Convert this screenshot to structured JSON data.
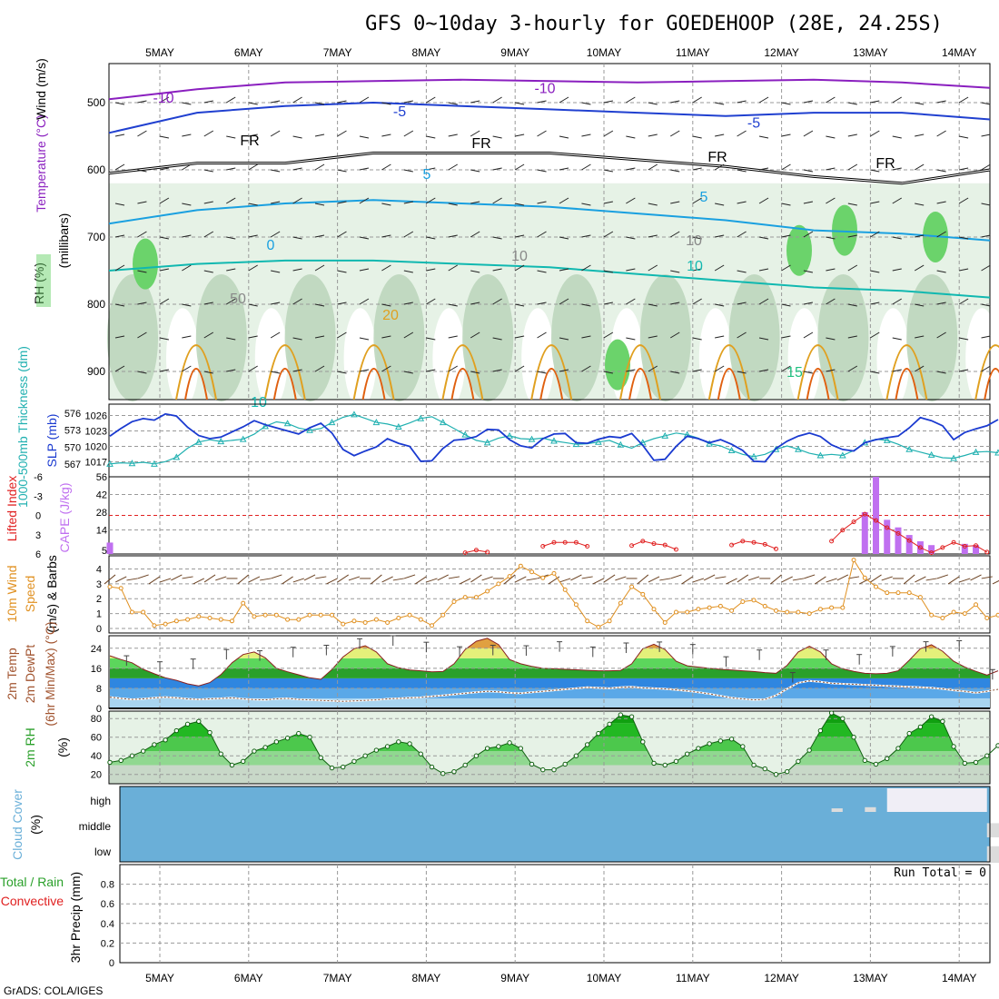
{
  "title": "GFS 0~10day 3-hourly for GOEDEHOOP (28E, 24.25S)",
  "credit": "GrADS: COLA/IGES",
  "colors": {
    "rh_fill_light": "#e6f2e6",
    "rh_fill_mid": "#bcd6bc",
    "rh_fill_dark": "#6bd36b",
    "temp_m10": "#8a1fbf",
    "temp_m5": "#2040d0",
    "temp_5": "#1aa0e0",
    "temp_10": "#10b8b0",
    "temp_15": "#20c080",
    "temp_20": "#e0a020",
    "temp_25": "#e06010",
    "thickness": "#20b0b0",
    "slp": "#1a3ad0",
    "cape": "#c070f0",
    "lifted_index": "#e02020",
    "wind_speed": "#e09020",
    "cloud_bg": "#6aafd8",
    "cloud_fill": "#dcdcdc"
  },
  "chart_data": [
    {
      "panel": "sounding",
      "type": "contour",
      "x_labels": [
        "5MAY",
        "6MAY",
        "7MAY",
        "8MAY",
        "9MAY",
        "10MAY",
        "11MAY",
        "12MAY",
        "13MAY",
        "14MAY"
      ],
      "ylabel": "Wind (m/s)",
      "ylabel_parts": [
        "RH (%)",
        "Temperature (°C)",
        "Wind (m/s)"
      ],
      "ylabel2": "(millibars)",
      "y_ticks": [
        500,
        600,
        700,
        800,
        900
      ],
      "ylim": [
        1000,
        450
      ],
      "contour_labels": [
        "-10",
        "-10",
        "-5",
        "-5",
        "FR",
        "FR",
        "FR",
        "FR",
        "5",
        "5",
        "10",
        "10",
        "20",
        "15",
        "0",
        "10",
        "10",
        "50"
      ],
      "freezing_level_hpa": [
        605,
        590,
        590,
        575,
        575,
        575,
        585,
        595,
        610,
        620,
        600
      ],
      "isotherms": [
        {
          "label": "-10",
          "hpa": [
            495,
            480,
            470,
            468,
            466,
            468,
            470,
            468,
            466,
            470,
            478
          ]
        },
        {
          "label": "-5",
          "hpa": [
            545,
            515,
            505,
            500,
            505,
            510,
            515,
            520,
            515,
            515,
            525
          ]
        },
        {
          "label": "5",
          "hpa": [
            680,
            660,
            650,
            645,
            650,
            655,
            665,
            675,
            690,
            695,
            705
          ]
        },
        {
          "label": "10",
          "hpa": [
            750,
            740,
            735,
            735,
            740,
            745,
            755,
            765,
            775,
            780,
            790
          ]
        }
      ]
    },
    {
      "panel": "thickness_slp",
      "type": "line",
      "ylabel": "1000-500mb Thickness (dm)",
      "ylabel_right": "SLP (mb)",
      "y_ticks_left": [
        567,
        570,
        573,
        576
      ],
      "y_ticks_right": [
        1017,
        1020,
        1023,
        1026
      ],
      "series": [
        {
          "name": "1000-500mb Thickness (dm)",
          "ylim": [
            566,
            577
          ],
          "values": [
            567.0,
            567.2,
            567.1,
            567.3,
            567.0,
            567.4,
            568.2,
            569.8,
            570.9,
            571.3,
            571.0,
            571.2,
            571.4,
            572.3,
            573.7,
            574.5,
            574.2,
            573.4,
            573.0,
            573.3,
            574.4,
            575.3,
            575.8,
            575.1,
            574.4,
            574.1,
            573.6,
            574.3,
            575.1,
            575.4,
            574.4,
            573.3,
            572.2,
            571.2,
            570.8,
            571.6,
            572.0,
            571.5,
            571.4,
            571.6,
            571.1,
            570.8,
            570.5,
            570.6,
            570.9,
            571.2,
            570.4,
            569.8,
            570.8,
            571.5,
            572.0,
            572.5,
            572.2,
            571.6,
            570.6,
            570.2,
            569.4,
            568.7,
            568.3,
            568.7,
            569.6,
            570.2,
            569.6,
            568.9,
            568.5,
            568.7,
            568.5,
            569.4,
            570.8,
            571.4,
            571.2,
            570.5,
            569.6,
            569.1,
            568.6,
            568.1,
            568.0,
            568.5,
            569.1,
            569.2,
            569.0
          ]
        },
        {
          "name": "SLP (mb)",
          "ylim": [
            1015.5,
            1027.5
          ],
          "values": [
            1022.0,
            1023.5,
            1024.8,
            1025.4,
            1025.1,
            1026.3,
            1025.9,
            1023.7,
            1022.1,
            1021.5,
            1021.8,
            1022.8,
            1023.8,
            1025.0,
            1024.2,
            1023.6,
            1023.0,
            1022.4,
            1023.6,
            1024.5,
            1022.6,
            1019.4,
            1018.2,
            1019.1,
            1019.9,
            1021.5,
            1020.6,
            1020.0,
            1017.1,
            1017.2,
            1019.6,
            1021.2,
            1021.4,
            1021.9,
            1023.3,
            1023.2,
            1021.3,
            1020.1,
            1019.7,
            1021.5,
            1022.4,
            1022.5,
            1020.7,
            1020.6,
            1021.4,
            1021.9,
            1021.7,
            1022.5,
            1020.2,
            1017.3,
            1017.5,
            1020.0,
            1022.0,
            1021.5,
            1020.7,
            1021.3,
            1020.4,
            1019.2,
            1017.1,
            1017.0,
            1019.6,
            1021.0,
            1022.0,
            1022.6,
            1021.9,
            1020.3,
            1019.4,
            1019.1,
            1020.7,
            1021.3,
            1021.7,
            1022.0,
            1023.6,
            1025.6,
            1025.0,
            1024.0,
            1021.3,
            1022.7,
            1023.4,
            1024.0,
            1025.2
          ]
        }
      ]
    },
    {
      "panel": "cape_li",
      "type": "bar",
      "ylabel": "Lifted Index",
      "ylabel_right": "CAPE (J/kg)",
      "y_ticks_left": [
        -6,
        -3,
        0,
        3,
        6
      ],
      "y_ticks_right": [
        5,
        14,
        28,
        42,
        56
      ],
      "series": [
        {
          "name": "CAPE (J/kg)",
          "ylim": [
            0,
            56
          ],
          "values": [
            4,
            0,
            0,
            0,
            0,
            0,
            0,
            0,
            0,
            0,
            0,
            0,
            0,
            0,
            0,
            0,
            0,
            0,
            0,
            0,
            0,
            0,
            0,
            0,
            0,
            0,
            0,
            0,
            0,
            0,
            0,
            0,
            0,
            0,
            0,
            0,
            0,
            0,
            0,
            0,
            0,
            0,
            0,
            0,
            0,
            0,
            0,
            0,
            0,
            0,
            0,
            0,
            0,
            0,
            0,
            0,
            0,
            0,
            0,
            0,
            0,
            0,
            0,
            0,
            0,
            0,
            0,
            0,
            28,
            56,
            22,
            16,
            10,
            5,
            2,
            0,
            0,
            3,
            2,
            0,
            0
          ]
        },
        {
          "name": "Lifted Index",
          "ylim": [
            6,
            -6
          ],
          "values": [
            null,
            null,
            null,
            null,
            null,
            null,
            null,
            null,
            null,
            null,
            null,
            null,
            null,
            null,
            null,
            null,
            null,
            null,
            null,
            null,
            null,
            null,
            null,
            null,
            null,
            null,
            null,
            null,
            null,
            null,
            null,
            null,
            null,
            null,
            null,
            null,
            null,
            null,
            null,
            null,
            null,
            null,
            null,
            null,
            null,
            null,
            null,
            null,
            null,
            null,
            null,
            null,
            null,
            null,
            null,
            null,
            null,
            null,
            null,
            null,
            null,
            null,
            null,
            null,
            null,
            null,
            null,
            null,
            null,
            null,
            null,
            null,
            null,
            null,
            null,
            null,
            null,
            null,
            null,
            null,
            null
          ]
        }
      ],
      "li_segments": [
        {
          "start": 32,
          "values": [
            5.8,
            5.4,
            5.7
          ]
        },
        {
          "start": 39,
          "values": [
            4.8,
            4.2,
            4.2,
            4.2,
            4.8
          ]
        },
        {
          "start": 47,
          "values": [
            4.7,
            4.0,
            4.4,
            4.6,
            5.3
          ]
        },
        {
          "start": 56,
          "values": [
            4.6,
            4.0,
            4.2,
            4.5,
            5.2
          ]
        },
        {
          "start": 65,
          "values": [
            4.0,
            2.3,
            1.0,
            -0.2,
            0.8,
            1.9,
            2.8,
            3.9,
            5.0,
            5.8,
            5.0,
            4.2,
            4.8,
            4.7,
            5.7
          ]
        }
      ]
    },
    {
      "panel": "wind10m",
      "type": "line",
      "ylabel": "10m Wind Speed (m/s) & Barbs",
      "y_ticks": [
        0,
        1,
        2,
        3,
        4
      ],
      "ylim": [
        0,
        4.7
      ],
      "series": [
        {
          "name": "10m Wind Speed",
          "values": [
            2.8,
            2.7,
            1.1,
            1.1,
            0.2,
            0.3,
            0.5,
            0.6,
            0.8,
            0.7,
            0.6,
            0.5,
            1.7,
            0.8,
            0.9,
            0.9,
            0.6,
            0.6,
            0.9,
            0.9,
            0.9,
            0.3,
            0.5,
            0.4,
            0.6,
            0.4,
            0.7,
            0.9,
            0.6,
            0.2,
            0.9,
            1.8,
            2.1,
            2.1,
            2.5,
            3.0,
            3.5,
            4.2,
            3.8,
            3.4,
            3.7,
            2.6,
            1.6,
            0.5,
            0.1,
            0.5,
            1.7,
            2.8,
            2.3,
            1.3,
            0.4,
            1.1,
            1.1,
            1.3,
            1.4,
            1.5,
            1.2,
            1.8,
            1.9,
            1.5,
            1.2,
            1.1,
            1.1,
            1.0,
            1.3,
            1.4,
            1.4,
            4.6,
            3.4,
            2.8,
            2.4,
            2.4,
            2.4,
            2.1,
            0.9,
            0.7,
            1.1,
            1.0,
            1.6,
            0.7,
            0.9
          ]
        }
      ]
    },
    {
      "panel": "temp2m",
      "type": "area",
      "ylabel": "2m Temp 2m DewPt (6hr Min/Max) (°C)",
      "y_ticks": [
        0,
        8,
        16,
        24
      ],
      "ylim": [
        0,
        29
      ],
      "series": [
        {
          "name": "2m Temp",
          "values": [
            21.0,
            19.5,
            18.2,
            15.6,
            13.8,
            12.2,
            11.2,
            9.8,
            9.0,
            10.3,
            13.5,
            18.2,
            21.5,
            22.5,
            20.2,
            16.0,
            14.6,
            13.4,
            12.2,
            11.6,
            15.5,
            20.5,
            23.8,
            25.0,
            22.5,
            17.8,
            16.2,
            15.3,
            15.0,
            14.6,
            14.7,
            17.8,
            23.5,
            26.8,
            28.0,
            25.5,
            19.5,
            17.8,
            16.8,
            16.0,
            15.8,
            15.6,
            15.4,
            15.2,
            15.0,
            15.0,
            15.1,
            17.8,
            23.8,
            25.6,
            23.5,
            18.8,
            17.0,
            16.5,
            16.0,
            15.6,
            15.3,
            15.0,
            14.7,
            14.3,
            14.0,
            17.2,
            22.5,
            24.8,
            22.5,
            17.8,
            15.8,
            14.8,
            14.0,
            13.8,
            14.0,
            15.0,
            19.2,
            23.8,
            25.4,
            22.8,
            18.8,
            16.5,
            14.8,
            13.3,
            15.0
          ]
        },
        {
          "name": "2m DewPt",
          "values": [
            4.5,
            4.0,
            3.6,
            3.8,
            4.2,
            4.5,
            4.2,
            3.8,
            3.6,
            3.8,
            4.0,
            4.2,
            3.8,
            3.5,
            3.4,
            3.8,
            4.0,
            3.6,
            3.4,
            3.2,
            3.0,
            2.8,
            3.0,
            3.2,
            3.4,
            3.8,
            4.0,
            4.2,
            4.4,
            4.8,
            5.2,
            5.6,
            6.0,
            6.4,
            6.8,
            6.6,
            6.2,
            6.0,
            6.4,
            6.8,
            7.2,
            7.6,
            8.0,
            8.4,
            8.2,
            8.0,
            8.4,
            8.6,
            8.2,
            8.0,
            7.8,
            7.4,
            7.0,
            6.4,
            5.8,
            5.0,
            4.2,
            3.8,
            3.4,
            3.6,
            5.2,
            7.8,
            10.2,
            11.0,
            10.6,
            10.0,
            9.8,
            9.6,
            9.4,
            9.2,
            9.0,
            8.8,
            8.6,
            8.4,
            8.2,
            7.8,
            7.2,
            6.8,
            6.2,
            6.8,
            7.6
          ]
        },
        {
          "name": "6hr Max",
          "values": [
            21.0,
            18.6,
            19.7,
            23.5,
            23.0,
            24.4,
            25.2,
            27.8,
            29.0,
            26.4,
            24.6,
            25.2,
            25.0,
            26.6,
            24.5,
            26.1,
            26.5,
            25.5,
            20.6,
            23.3,
            14.3,
            23.3,
            21.5,
            24.7,
            26.6,
            27.0,
            15.5
          ]
        }
      ]
    },
    {
      "panel": "rh2m",
      "type": "area",
      "ylabel": "2m RH (%)",
      "y_ticks": [
        20,
        40,
        60,
        80
      ],
      "ylim": [
        10,
        88
      ],
      "series": [
        {
          "name": "2m RH",
          "values": [
            33,
            35,
            40,
            45,
            52,
            57,
            67,
            74,
            77,
            65,
            42,
            30,
            34,
            45,
            49,
            55,
            59,
            64,
            60,
            38,
            27,
            28,
            34,
            40,
            46,
            50,
            55,
            53,
            42,
            28,
            21,
            23,
            30,
            40,
            48,
            50,
            54,
            48,
            31,
            25,
            25,
            31,
            40,
            52,
            64,
            74,
            84,
            82,
            55,
            32,
            30,
            34,
            42,
            48,
            53,
            56,
            58,
            50,
            30,
            26,
            20,
            23,
            34,
            46,
            67,
            86,
            80,
            60,
            35,
            31,
            37,
            48,
            64,
            71,
            82,
            77,
            50,
            32,
            33,
            40,
            51
          ]
        }
      ]
    },
    {
      "panel": "cloud_cover",
      "type": "heatmap",
      "ylabel": "Cloud Cover (%)",
      "rows": [
        "high",
        "middle",
        "low"
      ],
      "cells": [
        {
          "row": "high",
          "start": 65,
          "end": 66,
          "value": 15
        },
        {
          "row": "high",
          "start": 68,
          "end": 69,
          "value": 20
        },
        {
          "row": "high",
          "start": 70,
          "end": 79,
          "value": 100
        },
        {
          "row": "middle",
          "start": 79,
          "end": 82,
          "value": 60
        },
        {
          "row": "middle",
          "start": 89,
          "end": 90,
          "value": 100
        },
        {
          "row": "low",
          "start": 79,
          "end": 83,
          "value": 70
        },
        {
          "row": "low",
          "start": 89,
          "end": 90,
          "value": 100
        }
      ]
    },
    {
      "panel": "precip",
      "type": "bar",
      "ylabel": "3hr Precip (mm)",
      "ylabel_parts": [
        "Total / Rain",
        "Convective"
      ],
      "y_ticks": [
        0,
        0.2,
        0.4,
        0.6,
        0.8
      ],
      "ylim": [
        0,
        1.0
      ],
      "run_total_text": "Run Total = 0",
      "series": [
        {
          "name": "Total / Rain",
          "values": []
        },
        {
          "name": "Convective",
          "values": []
        }
      ]
    }
  ],
  "axis_labels": {
    "top": [
      "5MAY",
      "6MAY",
      "7MAY",
      "8MAY",
      "9MAY",
      "10MAY",
      "11MAY",
      "12MAY",
      "13MAY",
      "14MAY"
    ],
    "bottom": [
      "5MAY",
      "6MAY",
      "7MAY",
      "8MAY",
      "9MAY",
      "10MAY",
      "11MAY",
      "12MAY",
      "13MAY",
      "14MAY"
    ]
  }
}
